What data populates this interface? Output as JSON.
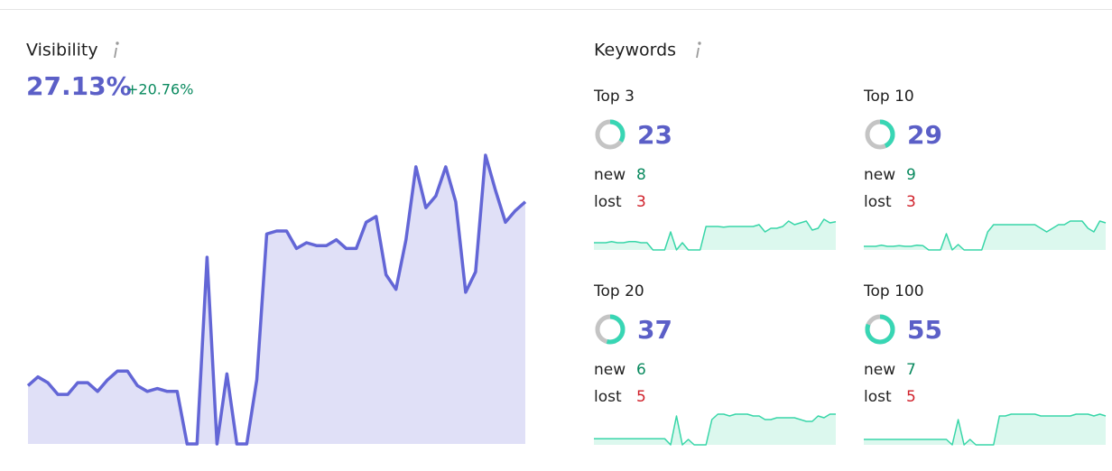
{
  "visibility": {
    "title": "Visibility",
    "value": "27.13%",
    "change": "+20.76%",
    "chart": {
      "type": "area",
      "color": "#6366d6",
      "fill": "#e0e0f7",
      "values": [
        20,
        23,
        21,
        17,
        17,
        21,
        21,
        18,
        22,
        25,
        25,
        20,
        18,
        19,
        18,
        18,
        0,
        0,
        64,
        0,
        24,
        0,
        0,
        22,
        72,
        73,
        73,
        67,
        69,
        68,
        68,
        70,
        67,
        67,
        76,
        78,
        58,
        53,
        70,
        95,
        81,
        85,
        95,
        83,
        52,
        59,
        99,
        87,
        76,
        80,
        83
      ]
    }
  },
  "keywords": {
    "title": "Keywords",
    "spark_color": "#38d6a8",
    "spark_fill": "#dcf8ee",
    "cards": [
      {
        "label": "Top 3",
        "count": 23,
        "share": 34,
        "new_label": "new",
        "new": 8,
        "lost_label": "lost",
        "lost": 3,
        "sparkline": [
          2,
          2,
          2,
          2.3,
          2,
          2,
          2.3,
          2.3,
          2,
          2,
          0,
          0,
          0,
          5,
          0,
          2,
          0,
          0,
          0,
          6.5,
          6.5,
          6.5,
          6.3,
          6.5,
          6.5,
          6.5,
          6.5,
          6.5,
          7,
          5,
          6,
          6,
          6.5,
          8,
          7,
          7.5,
          8,
          5.5,
          6,
          8.5,
          7.5,
          7.8
        ]
      },
      {
        "label": "Top 10",
        "count": 29,
        "share": 43,
        "new_label": "new",
        "new": 9,
        "lost_label": "lost",
        "lost": 3,
        "sparkline": [
          1,
          1,
          1,
          1.3,
          1,
          1,
          1.2,
          1,
          1,
          1.3,
          1.2,
          0,
          0,
          0,
          4.5,
          0,
          1.5,
          0,
          0,
          0,
          0,
          5,
          7,
          7,
          7,
          7,
          7,
          7,
          7,
          7,
          6,
          5,
          6,
          7,
          7,
          8,
          8,
          8,
          6,
          5,
          8,
          7.5
        ]
      },
      {
        "label": "Top 20",
        "count": 37,
        "share": 54,
        "new_label": "new",
        "new": 6,
        "lost_label": "lost",
        "lost": 5,
        "sparkline": [
          1.7,
          1.7,
          1.7,
          1.7,
          1.7,
          1.7,
          1.7,
          1.7,
          1.7,
          1.7,
          1.7,
          1.7,
          1.7,
          0,
          8,
          0,
          1.5,
          0,
          0,
          0,
          7,
          8.5,
          8.5,
          8,
          8.5,
          8.5,
          8.5,
          8,
          8,
          7,
          7,
          7.5,
          7.5,
          7.5,
          7.5,
          7,
          6.5,
          6.5,
          8,
          7.5,
          8.5,
          8.5
        ]
      },
      {
        "label": "Top 100",
        "count": 55,
        "share": 81,
        "new_label": "new",
        "new": 7,
        "lost_label": "lost",
        "lost": 5,
        "sparkline": [
          1.5,
          1.5,
          1.5,
          1.5,
          1.5,
          1.5,
          1.5,
          1.5,
          1.5,
          1.5,
          1.5,
          1.5,
          1.5,
          1.5,
          1.5,
          0,
          7,
          0,
          1.5,
          0,
          0,
          0,
          0,
          8,
          8,
          8.5,
          8.5,
          8.5,
          8.5,
          8.5,
          8,
          8,
          8,
          8,
          8,
          8,
          8.5,
          8.5,
          8.5,
          8,
          8.5,
          8
        ]
      }
    ]
  }
}
